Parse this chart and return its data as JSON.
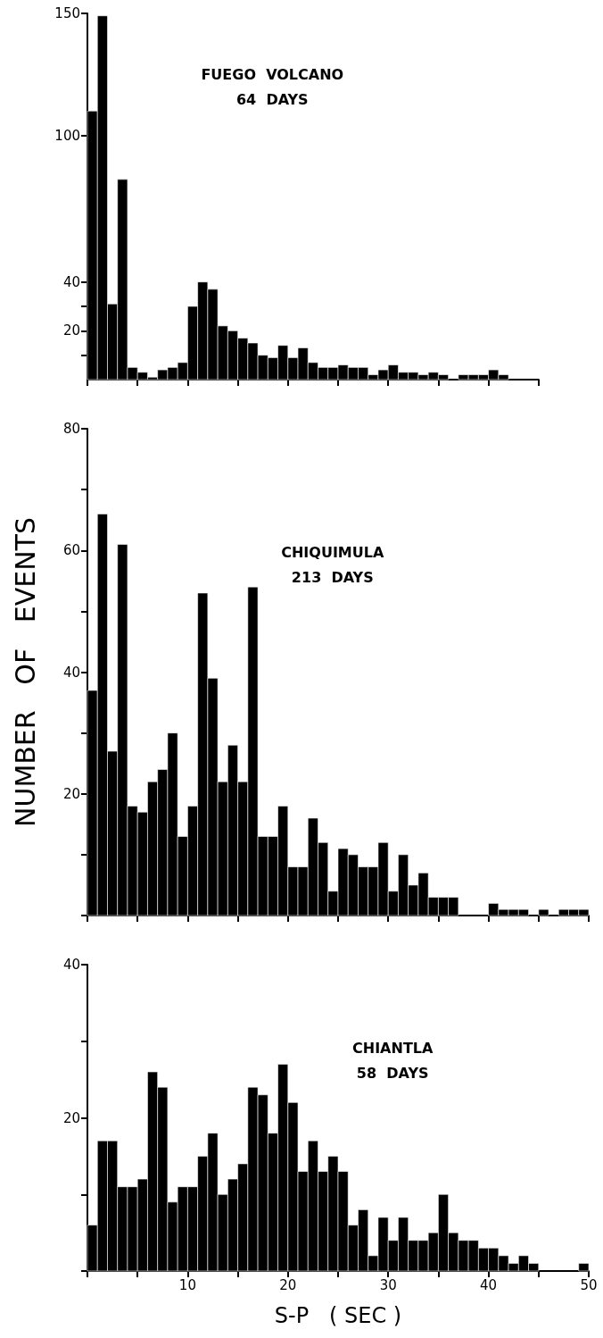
{
  "chart_data": [
    {
      "type": "histogram",
      "title": "FUEGO  VOLCANO",
      "subtitle": "64  DAYS",
      "color": "#000000",
      "bins": [
        0,
        1,
        2,
        3,
        4,
        5,
        6,
        7,
        8,
        9,
        10,
        11,
        12,
        13,
        14,
        15,
        16,
        17,
        18,
        19,
        20,
        21,
        22,
        23,
        24,
        25,
        26,
        27,
        28,
        29,
        30,
        31,
        32,
        33,
        34,
        35,
        36,
        37,
        38,
        39,
        40,
        41,
        42,
        43,
        44,
        45
      ],
      "values": [
        110,
        149,
        31,
        82,
        5,
        3,
        1,
        4,
        5,
        7,
        30,
        40,
        37,
        22,
        20,
        17,
        15,
        10,
        9,
        14,
        9,
        13,
        7,
        5,
        5,
        6,
        5,
        5,
        2,
        4,
        6,
        3,
        3,
        2,
        3,
        2,
        0,
        2,
        2,
        2,
        4,
        2,
        0,
        0,
        0
      ],
      "xlim": [
        0,
        45
      ],
      "xticks": [
        5,
        10,
        15,
        20,
        25,
        30,
        35,
        40,
        45
      ],
      "ylim": [
        0,
        150
      ],
      "yticks": [
        {
          "value": 10,
          "label": null
        },
        20,
        {
          "value": 30,
          "label": null
        },
        40,
        100,
        150
      ],
      "tick_labels": "y",
      "grid": false
    },
    {
      "type": "histogram",
      "title": "CHIQUIMULA",
      "subtitle": "213  DAYS",
      "ylabel": "NUMBER   OF   EVENTS",
      "color": "#000000",
      "bins": [
        0,
        1,
        2,
        3,
        4,
        5,
        6,
        7,
        8,
        9,
        10,
        11,
        12,
        13,
        14,
        15,
        16,
        17,
        18,
        19,
        20,
        21,
        22,
        23,
        24,
        25,
        26,
        27,
        28,
        29,
        30,
        31,
        32,
        33,
        34,
        35,
        36,
        37,
        38,
        39,
        40,
        41,
        42,
        43,
        44,
        45,
        46,
        47,
        48,
        49,
        50
      ],
      "values": [
        37,
        66,
        27,
        61,
        18,
        17,
        22,
        24,
        30,
        13,
        18,
        53,
        39,
        22,
        28,
        22,
        54,
        13,
        13,
        18,
        8,
        8,
        16,
        12,
        4,
        11,
        10,
        8,
        8,
        12,
        4,
        10,
        5,
        7,
        3,
        3,
        3,
        0,
        0,
        0,
        2,
        1,
        1,
        1,
        0,
        1,
        0,
        1,
        1,
        1
      ],
      "xlim": [
        0,
        50
      ],
      "xticks": [
        5,
        10,
        15,
        20,
        25,
        30,
        35,
        40,
        45,
        50
      ],
      "ylim": [
        0,
        80
      ],
      "yticks": [
        {
          "value": 10,
          "label": null
        },
        20,
        {
          "value": 30,
          "label": null
        },
        40,
        {
          "value": 50,
          "label": null
        },
        60,
        {
          "value": 70,
          "label": null
        },
        80
      ],
      "tick_labels": "y",
      "grid": false
    },
    {
      "type": "histogram",
      "title": "CHIANTLA",
      "subtitle": "58  DAYS",
      "xlabel": "S-P   ( SEC )",
      "color": "#000000",
      "bins": [
        0,
        1,
        2,
        3,
        4,
        5,
        6,
        7,
        8,
        9,
        10,
        11,
        12,
        13,
        14,
        15,
        16,
        17,
        18,
        19,
        20,
        21,
        22,
        23,
        24,
        25,
        26,
        27,
        28,
        29,
        30,
        31,
        32,
        33,
        34,
        35,
        36,
        37,
        38,
        39,
        40,
        41,
        42,
        43,
        44,
        45,
        46,
        47,
        48,
        49,
        50
      ],
      "values": [
        6,
        17,
        17,
        11,
        11,
        12,
        26,
        24,
        9,
        11,
        11,
        15,
        18,
        10,
        12,
        14,
        24,
        23,
        18,
        27,
        22,
        13,
        17,
        13,
        15,
        13,
        6,
        8,
        2,
        7,
        4,
        7,
        4,
        4,
        5,
        10,
        5,
        4,
        4,
        3,
        3,
        2,
        1,
        2,
        1,
        0,
        0,
        0,
        0,
        1
      ],
      "xlim": [
        0,
        50
      ],
      "xticks": [
        {
          "value": 5,
          "label": null
        },
        10,
        {
          "value": 15,
          "label": null
        },
        20,
        {
          "value": 25,
          "label": null
        },
        30,
        {
          "value": 35,
          "label": null
        },
        40,
        {
          "value": 45,
          "label": null
        },
        50
      ],
      "ylim": [
        0,
        40
      ],
      "yticks": [
        {
          "value": 10,
          "label": null
        },
        20,
        {
          "value": 30,
          "label": null
        },
        40
      ],
      "grid": false
    }
  ]
}
